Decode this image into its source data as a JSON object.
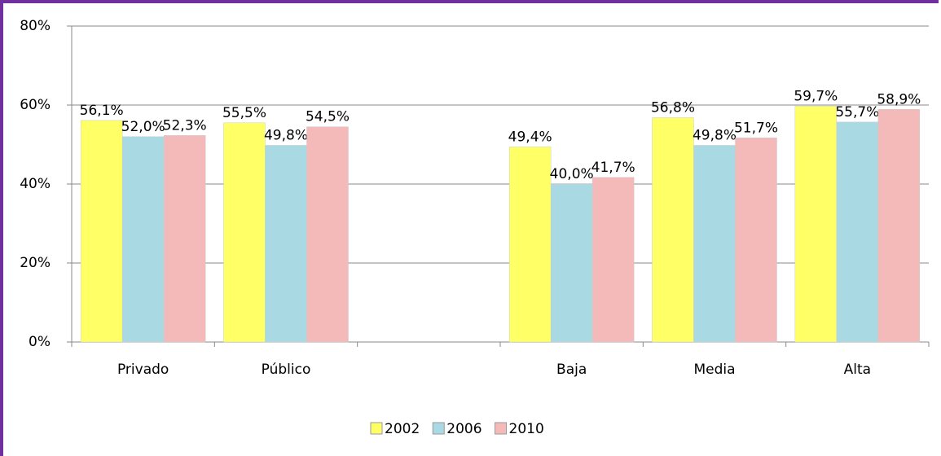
{
  "chart_data": {
    "type": "bar",
    "categories": [
      "Privado",
      "Público",
      null,
      "Baja",
      "Media",
      "Alta"
    ],
    "series": [
      {
        "name": "2002",
        "color": "#ffff66",
        "values": [
          56.1,
          55.5,
          null,
          49.4,
          56.8,
          59.7
        ],
        "value_labels": [
          "56,1%",
          "55,5%",
          null,
          "49,4%",
          "56,8%",
          "59,7%"
        ]
      },
      {
        "name": "2006",
        "color": "#a9d9e3",
        "values": [
          52.0,
          49.8,
          null,
          40.0,
          49.8,
          55.7
        ],
        "value_labels": [
          "52,0%",
          "49,8%",
          null,
          "40,0%",
          "49,8%",
          "55,7%"
        ]
      },
      {
        "name": "2010",
        "color": "#f4b9b9",
        "values": [
          52.3,
          54.5,
          null,
          41.7,
          51.7,
          58.9
        ],
        "value_labels": [
          "52,3%",
          "54,5%",
          null,
          "41,7%",
          "51,7%",
          "58,9%"
        ]
      }
    ],
    "ylim": [
      0,
      80
    ],
    "yticks": [
      {
        "value": 0,
        "label": "0%"
      },
      {
        "value": 20,
        "label": "20%"
      },
      {
        "value": 40,
        "label": "40%"
      },
      {
        "value": 60,
        "label": "60%"
      },
      {
        "value": 80,
        "label": "80%"
      }
    ],
    "grid": true,
    "legend": "bottom"
  }
}
